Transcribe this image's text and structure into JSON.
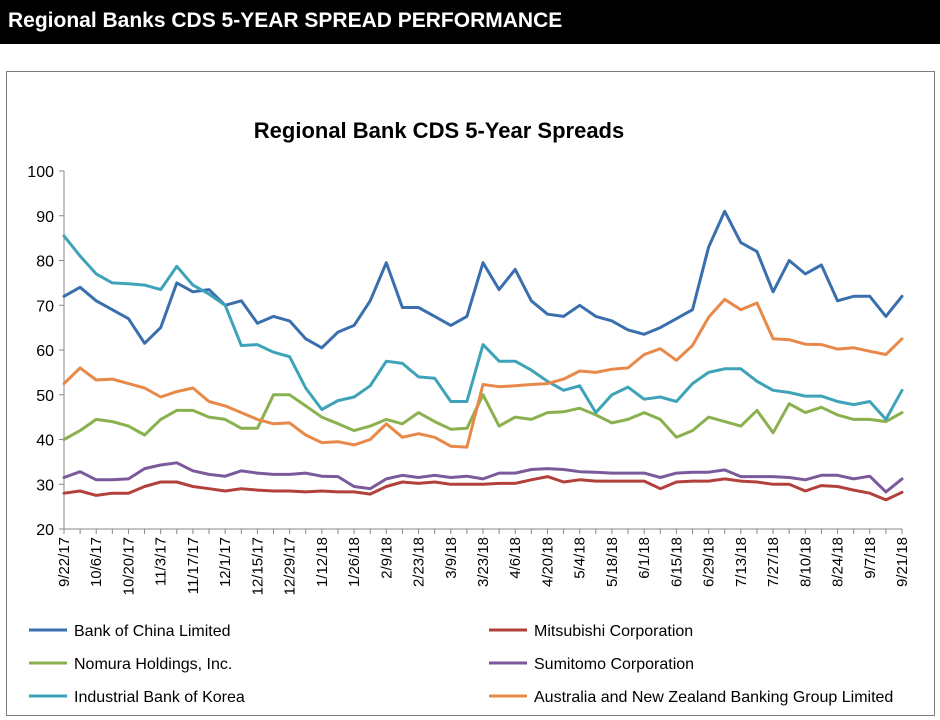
{
  "page": {
    "header": "Regional Banks CDS 5-YEAR SPREAD PERFORMANCE"
  },
  "chart_data": {
    "type": "line",
    "title": "Regional Bank CDS 5-Year Spreads",
    "xlabel": "",
    "ylabel": "",
    "ylim": [
      20,
      100
    ],
    "yticks": [
      20,
      30,
      40,
      50,
      60,
      70,
      80,
      90,
      100
    ],
    "grid": false,
    "legend_position": "bottom",
    "x": [
      "9/22/17",
      "9/29/17",
      "10/6/17",
      "10/13/17",
      "10/20/17",
      "10/27/17",
      "11/3/17",
      "11/10/17",
      "11/17/17",
      "11/24/17",
      "12/1/17",
      "12/8/17",
      "12/15/17",
      "12/22/17",
      "12/29/17",
      "1/5/18",
      "1/12/18",
      "1/19/18",
      "1/26/18",
      "2/2/18",
      "2/9/18",
      "2/16/18",
      "2/23/18",
      "3/2/18",
      "3/9/18",
      "3/16/18",
      "3/23/18",
      "3/30/18",
      "4/6/18",
      "4/13/18",
      "4/20/18",
      "4/27/18",
      "5/4/18",
      "5/11/18",
      "5/18/18",
      "5/25/18",
      "6/1/18",
      "6/8/18",
      "6/15/18",
      "6/22/18",
      "6/29/18",
      "7/6/18",
      "7/13/18",
      "7/20/18",
      "7/27/18",
      "8/3/18",
      "8/10/18",
      "8/17/18",
      "8/24/18",
      "8/31/18",
      "9/7/18",
      "9/14/18",
      "9/21/18"
    ],
    "x_tick_labels": [
      "9/22/17",
      "10/6/17",
      "10/20/17",
      "11/3/17",
      "11/17/17",
      "12/1/17",
      "12/15/17",
      "12/29/17",
      "1/12/18",
      "1/26/18",
      "2/9/18",
      "2/23/18",
      "3/9/18",
      "3/23/18",
      "4/6/18",
      "4/20/18",
      "5/4/18",
      "5/18/18",
      "6/1/18",
      "6/15/18",
      "6/29/18",
      "7/13/18",
      "7/27/18",
      "8/10/18",
      "8/24/18",
      "9/7/18",
      "9/21/18"
    ],
    "series": [
      {
        "name": "Bank of China Limited",
        "color": "#3a6fad",
        "values": [
          72,
          74,
          71,
          69,
          67,
          61.5,
          65,
          75,
          73,
          73.5,
          70,
          71,
          66,
          67.5,
          66.5,
          62.5,
          60.5,
          64,
          65.5,
          71,
          79.5,
          69.5,
          69.5,
          67.5,
          65.5,
          67.5,
          79.5,
          73.5,
          78,
          71,
          68,
          67.5,
          70,
          67.5,
          66.5,
          64.5,
          63.5,
          65,
          67,
          69,
          83,
          91,
          84,
          82,
          73,
          80,
          77,
          79,
          71,
          72,
          72,
          67.5,
          72
        ]
      },
      {
        "name": "Mitsubishi Corporation",
        "color": "#b2413c",
        "values": [
          28,
          28.5,
          27.5,
          28,
          28,
          29.5,
          30.5,
          30.5,
          29.5,
          29,
          28.5,
          29,
          28.7,
          28.5,
          28.5,
          28.3,
          28.5,
          28.3,
          28.3,
          27.8,
          29.5,
          30.5,
          30.2,
          30.5,
          30,
          30,
          30,
          30.2,
          30.2,
          31,
          31.7,
          30.5,
          31,
          30.7,
          30.7,
          30.7,
          30.7,
          29,
          30.5,
          30.7,
          30.7,
          31.2,
          30.7,
          30.5,
          30,
          30,
          28.5,
          29.7,
          29.5,
          28.7,
          28,
          26.5,
          28.2
        ]
      },
      {
        "name": "Nomura Holdings, Inc.",
        "color": "#8ab14f",
        "values": [
          40,
          42,
          44.5,
          44,
          43,
          41,
          44.5,
          46.5,
          46.5,
          45,
          44.5,
          42.5,
          42.5,
          50,
          50,
          47.5,
          45,
          43.5,
          42,
          43,
          44.5,
          43.5,
          46,
          44,
          42.3,
          42.5,
          50,
          43,
          45,
          44.5,
          46,
          46.2,
          47,
          45.5,
          43.7,
          44.5,
          46,
          44.5,
          40.5,
          42,
          45,
          44,
          43,
          46.5,
          41.5,
          48,
          46,
          47.2,
          45.5,
          44.5,
          44.5,
          44,
          46
        ]
      },
      {
        "name": "Sumitomo Corporation",
        "color": "#7a5a9b",
        "values": [
          31.5,
          32.8,
          31,
          31,
          31.2,
          33.5,
          34.3,
          34.8,
          33,
          32.2,
          31.8,
          33,
          32.5,
          32.2,
          32.2,
          32.5,
          31.8,
          31.7,
          29.5,
          29,
          31.2,
          32,
          31.5,
          32,
          31.5,
          31.8,
          31.2,
          32.5,
          32.5,
          33.3,
          33.5,
          33.3,
          32.8,
          32.7,
          32.5,
          32.5,
          32.5,
          31.5,
          32.5,
          32.7,
          32.7,
          33.2,
          31.7,
          31.7,
          31.7,
          31.5,
          31,
          32,
          32,
          31.2,
          31.8,
          28.3,
          31.2
        ]
      },
      {
        "name": "Industrial Bank of Korea",
        "color": "#3ea3b8",
        "values": [
          85.5,
          81,
          77,
          75,
          74.8,
          74.5,
          73.5,
          78.7,
          74.5,
          72.5,
          70,
          61,
          61.2,
          59.5,
          58.5,
          51.5,
          46.7,
          48.7,
          49.5,
          52,
          57.5,
          57,
          54,
          53.7,
          48.5,
          48.5,
          61.2,
          57.5,
          57.5,
          55.5,
          53,
          51,
          52,
          46,
          50,
          51.7,
          49,
          49.5,
          48.5,
          52.5,
          55,
          55.8,
          55.8,
          53,
          51,
          50.5,
          49.7,
          49.7,
          48.5,
          47.8,
          48.5,
          44.5,
          51
        ]
      },
      {
        "name": "Australia and New Zealand Banking Group Limited",
        "color": "#e8894a",
        "values": [
          52.5,
          56,
          53.3,
          53.5,
          52.5,
          51.5,
          49.5,
          50.7,
          51.5,
          48.5,
          47.5,
          46,
          44.5,
          43.5,
          43.7,
          41,
          39.3,
          39.5,
          38.8,
          40,
          43.5,
          40.5,
          41.3,
          40.5,
          38.5,
          38.3,
          52.3,
          51.8,
          52,
          52.3,
          52.5,
          53.5,
          55.3,
          55,
          55.7,
          56,
          59,
          60.3,
          57.7,
          61,
          67.3,
          71.3,
          69,
          70.5,
          62.5,
          62.3,
          61.3,
          61.2,
          60.2,
          60.5,
          59.7,
          59,
          62.5
        ]
      }
    ]
  }
}
